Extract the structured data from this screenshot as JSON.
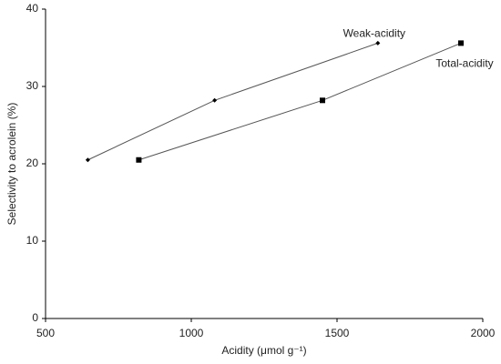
{
  "chart_data": {
    "type": "line",
    "x_label": "Acidity (μmol g⁻¹)",
    "y_label": "Selectivity to acrolein (%)",
    "xlim": [
      500,
      2000
    ],
    "xticks": [
      500,
      1000,
      1500,
      2000
    ],
    "ylim": [
      0,
      40
    ],
    "yticks": [
      0,
      10,
      20,
      30,
      40
    ],
    "series": [
      {
        "name": "Weak-acidity",
        "color": "#000000",
        "marker": "diamond",
        "x": [
          645,
          1080,
          1640
        ],
        "values": [
          20.5,
          28.2,
          35.6
        ]
      },
      {
        "name": "Total-acidity",
        "color": "#000000",
        "marker": "square",
        "x": [
          820,
          1450,
          1925
        ],
        "values": [
          20.5,
          28.2,
          35.6
        ]
      }
    ]
  }
}
